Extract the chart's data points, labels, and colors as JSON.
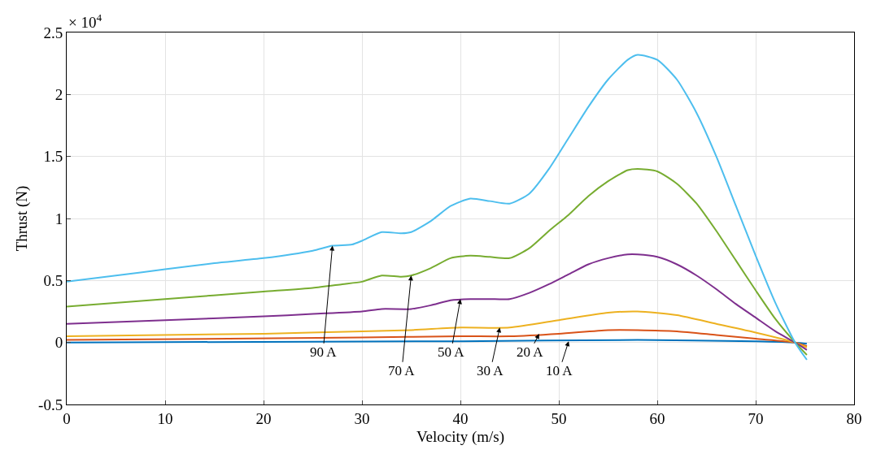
{
  "chart_data": {
    "type": "line",
    "xlabel": "Velocity (m/s)",
    "ylabel": "Thrust (N)",
    "xlim": [
      0,
      80
    ],
    "xticks": [
      0,
      10,
      20,
      30,
      40,
      50,
      60,
      70,
      80
    ],
    "ylim": [
      -0.5,
      2.5
    ],
    "yticks": [
      -0.5,
      0,
      0.5,
      1,
      1.5,
      2,
      2.5
    ],
    "grid": true,
    "marker": "none",
    "line_style": "solid",
    "annotations": [
      "× 10$^{4}$",
      {
        "text": "90 A",
        "x": 27,
        "y": 0.78
      },
      {
        "text": "70 A",
        "x": 35,
        "y": 0.54
      },
      {
        "text": "50 A",
        "x": 40,
        "y": 0.35
      },
      {
        "text": "30 A",
        "x": 44,
        "y": 0.12
      },
      {
        "text": "20 A",
        "x": 48,
        "y": 0.07
      },
      {
        "text": "10 A",
        "x": 51,
        "y": 0.01
      }
    ],
    "series": [
      {
        "color": "#0072bd",
        "x": [
          0,
          40,
          58,
          70,
          74,
          75.2
        ],
        "values": [
          0,
          0.01,
          0.02,
          0.01,
          0,
          -0.01
        ]
      },
      {
        "color": "#d95319",
        "x": [
          0,
          30,
          40,
          45,
          50,
          55,
          58,
          62,
          66,
          70,
          74,
          75.2
        ],
        "values": [
          0.02,
          0.04,
          0.05,
          0.05,
          0.07,
          0.1,
          0.1,
          0.09,
          0.06,
          0.03,
          0,
          -0.03
        ]
      },
      {
        "color": "#edb120",
        "x": [
          0,
          20,
          30,
          35,
          40,
          45,
          50,
          55,
          58,
          62,
          66,
          70,
          74,
          75.2
        ],
        "values": [
          0.05,
          0.07,
          0.09,
          0.1,
          0.12,
          0.12,
          0.18,
          0.24,
          0.25,
          0.22,
          0.15,
          0.08,
          0,
          -0.04
        ]
      },
      {
        "color": "#7e2f8e",
        "x": [
          0,
          10,
          20,
          25,
          30,
          32,
          35,
          37,
          39,
          41,
          43,
          45,
          47,
          49,
          51,
          53,
          55,
          57,
          58,
          60,
          62,
          64,
          66,
          68,
          70,
          72,
          74,
          75.2
        ],
        "values": [
          0.15,
          0.18,
          0.21,
          0.23,
          0.25,
          0.27,
          0.27,
          0.3,
          0.34,
          0.35,
          0.35,
          0.35,
          0.4,
          0.47,
          0.55,
          0.63,
          0.68,
          0.71,
          0.71,
          0.69,
          0.63,
          0.54,
          0.43,
          0.31,
          0.2,
          0.09,
          0,
          -0.06
        ]
      },
      {
        "color": "#77ac30",
        "x": [
          0,
          10,
          20,
          25,
          28,
          30,
          32,
          34,
          35,
          37,
          39,
          41,
          43,
          45,
          47,
          49,
          51,
          53,
          55,
          57,
          58,
          60,
          62,
          64,
          66,
          68,
          70,
          72,
          74,
          75.2
        ],
        "values": [
          0.29,
          0.35,
          0.41,
          0.44,
          0.47,
          0.49,
          0.54,
          0.53,
          0.54,
          0.6,
          0.68,
          0.7,
          0.69,
          0.68,
          0.76,
          0.9,
          1.03,
          1.18,
          1.3,
          1.39,
          1.4,
          1.38,
          1.28,
          1.12,
          0.9,
          0.66,
          0.42,
          0.19,
          0,
          -0.1
        ]
      },
      {
        "color": "#4dbeee",
        "x": [
          0,
          5,
          10,
          15,
          20,
          25,
          27,
          29,
          30,
          32,
          34,
          35,
          37,
          39,
          41,
          43,
          45,
          47,
          49,
          51,
          53,
          55,
          57,
          58,
          60,
          62,
          64,
          66,
          68,
          70,
          72,
          74,
          75.2
        ],
        "values": [
          0.49,
          0.54,
          0.59,
          0.64,
          0.68,
          0.74,
          0.78,
          0.79,
          0.82,
          0.89,
          0.88,
          0.89,
          0.98,
          1.1,
          1.16,
          1.14,
          1.12,
          1.2,
          1.4,
          1.65,
          1.9,
          2.12,
          2.28,
          2.32,
          2.28,
          2.12,
          1.85,
          1.5,
          1.1,
          0.7,
          0.32,
          0,
          -0.14
        ]
      }
    ]
  }
}
